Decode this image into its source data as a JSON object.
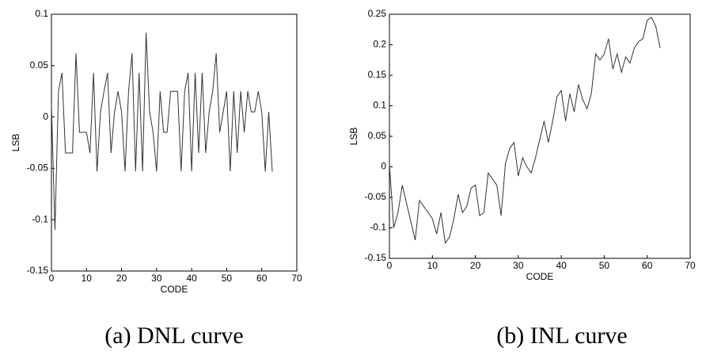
{
  "chart_data": [
    {
      "type": "line",
      "xlabel": "CODE",
      "ylabel": "LSB",
      "caption": "(a) DNL curve",
      "xlim": [
        0,
        70
      ],
      "xticks": [
        0,
        10,
        20,
        30,
        40,
        50,
        60,
        70
      ],
      "ylim": [
        -0.15,
        0.1
      ],
      "yticks": [
        -0.15,
        -0.1,
        -0.05,
        0,
        0.05,
        0.1
      ],
      "x": [
        0,
        1,
        2,
        3,
        4,
        5,
        6,
        7,
        8,
        9,
        10,
        11,
        12,
        13,
        14,
        15,
        16,
        17,
        18,
        19,
        20,
        21,
        22,
        23,
        24,
        25,
        26,
        27,
        28,
        29,
        30,
        31,
        32,
        33,
        34,
        35,
        36,
        37,
        38,
        39,
        40,
        41,
        42,
        43,
        44,
        45,
        46,
        47,
        48,
        49,
        50,
        51,
        52,
        53,
        54,
        55,
        56,
        57,
        58,
        59,
        60,
        61,
        62,
        63
      ],
      "series": [
        {
          "color": "#333333",
          "values": [
            0.012,
            -0.11,
            0.025,
            0.043,
            -0.035,
            -0.035,
            -0.035,
            0.062,
            -0.015,
            -0.015,
            -0.015,
            -0.035,
            0.043,
            -0.053,
            0.005,
            0.025,
            0.043,
            -0.035,
            0.005,
            0.025,
            0.005,
            -0.053,
            0.025,
            0.062,
            -0.053,
            0.043,
            -0.053,
            0.082,
            0.005,
            -0.015,
            -0.053,
            0.025,
            -0.015,
            -0.015,
            0.025,
            0.025,
            0.025,
            -0.053,
            0.025,
            0.043,
            -0.053,
            0.043,
            -0.035,
            0.043,
            -0.035,
            0.005,
            0.025,
            0.062,
            -0.015,
            0.005,
            0.025,
            -0.053,
            0.025,
            -0.035,
            0.025,
            -0.015,
            0.025,
            0.005,
            0.005,
            0.025,
            0.005,
            -0.053,
            0.005,
            -0.053
          ]
        }
      ]
    },
    {
      "type": "line",
      "xlabel": "CODE",
      "ylabel": "LSB",
      "caption": "(b) INL curve",
      "xlim": [
        0,
        70
      ],
      "xticks": [
        0,
        10,
        20,
        30,
        40,
        50,
        60,
        70
      ],
      "ylim": [
        -0.15,
        0.25
      ],
      "yticks": [
        -0.15,
        -0.1,
        -0.05,
        0,
        0.05,
        0.1,
        0.15,
        0.2,
        0.25
      ],
      "x": [
        0,
        1,
        2,
        3,
        4,
        5,
        6,
        7,
        8,
        9,
        10,
        11,
        12,
        13,
        14,
        15,
        16,
        17,
        18,
        19,
        20,
        21,
        22,
        23,
        24,
        25,
        26,
        27,
        28,
        29,
        30,
        31,
        32,
        33,
        34,
        35,
        36,
        37,
        38,
        39,
        40,
        41,
        42,
        43,
        44,
        45,
        46,
        47,
        48,
        49,
        50,
        51,
        52,
        53,
        54,
        55,
        56,
        57,
        58,
        59,
        60,
        61,
        62,
        63
      ],
      "series": [
        {
          "color": "#333333",
          "values": [
            0.005,
            -0.1,
            -0.075,
            -0.03,
            -0.06,
            -0.09,
            -0.12,
            -0.055,
            -0.065,
            -0.075,
            -0.085,
            -0.11,
            -0.075,
            -0.125,
            -0.115,
            -0.085,
            -0.045,
            -0.075,
            -0.065,
            -0.035,
            -0.03,
            -0.08,
            -0.075,
            -0.01,
            -0.02,
            -0.03,
            -0.08,
            0.005,
            0.03,
            0.04,
            -0.015,
            0.015,
            0.0,
            -0.01,
            0.015,
            0.045,
            0.075,
            0.04,
            0.075,
            0.115,
            0.125,
            0.075,
            0.12,
            0.09,
            0.135,
            0.11,
            0.095,
            0.12,
            0.185,
            0.175,
            0.185,
            0.21,
            0.16,
            0.185,
            0.155,
            0.18,
            0.17,
            0.195,
            0.205,
            0.21,
            0.24,
            0.245,
            0.23,
            0.195
          ]
        }
      ]
    }
  ]
}
